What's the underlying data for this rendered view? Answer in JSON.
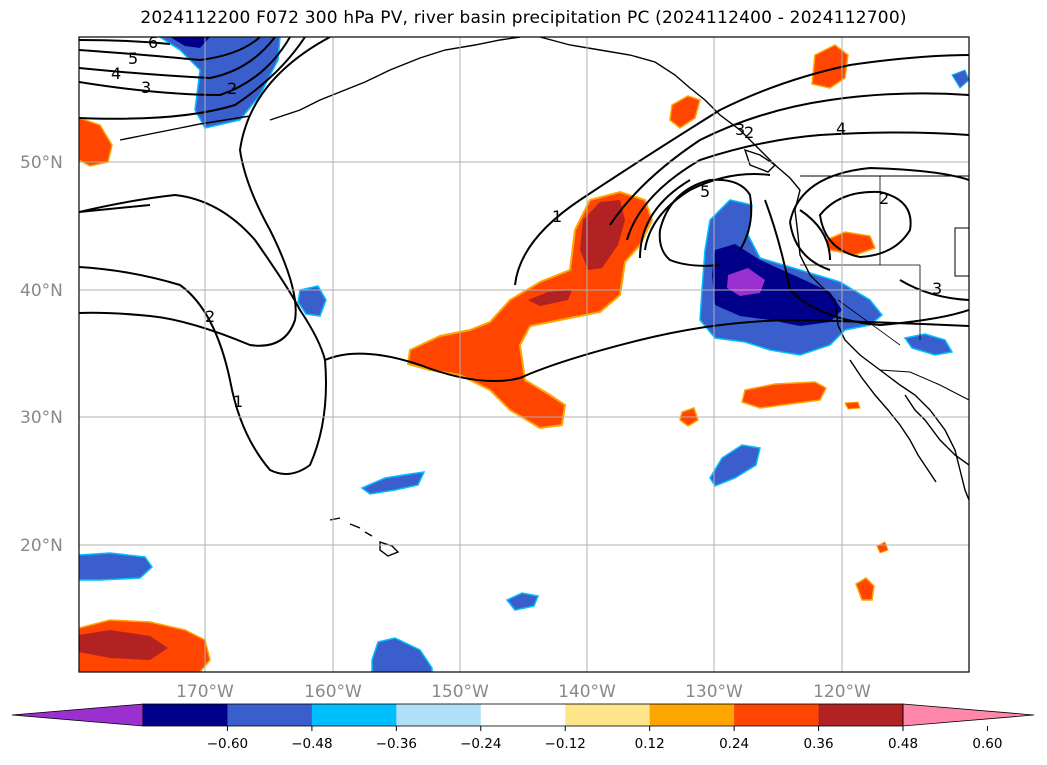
{
  "title": "2024112200 F072 300 hPa PV, river basin precipitation PC (2024112400 - 2024112700)",
  "lat_labels": [
    "50°N",
    "40°N",
    "30°N",
    "20°N"
  ],
  "lon_labels": [
    "170°W",
    "160°W",
    "150°W",
    "140°W",
    "130°W",
    "120°W"
  ],
  "contour_labels": [
    "6",
    "5",
    "4",
    "3",
    "2",
    "2",
    "1",
    "1",
    "5",
    "4",
    "3",
    "2",
    "2",
    "3"
  ],
  "colorbar": {
    "ticks": [
      "−0.60",
      "−0.48",
      "−0.36",
      "−0.24",
      "−0.12",
      "0.12",
      "0.24",
      "0.36",
      "0.48",
      "0.60"
    ],
    "colors": [
      "#9b30d0",
      "#00008b",
      "#3a5fcd",
      "#00bfff",
      "#b0e0f8",
      "#ffffff",
      "#fde68a",
      "#ffa500",
      "#ff4500",
      "#b22222",
      "#ff88aa"
    ]
  },
  "colors": {
    "land_outline": "#000000",
    "contour": "#000000",
    "grid": "#b0b0b0"
  }
}
